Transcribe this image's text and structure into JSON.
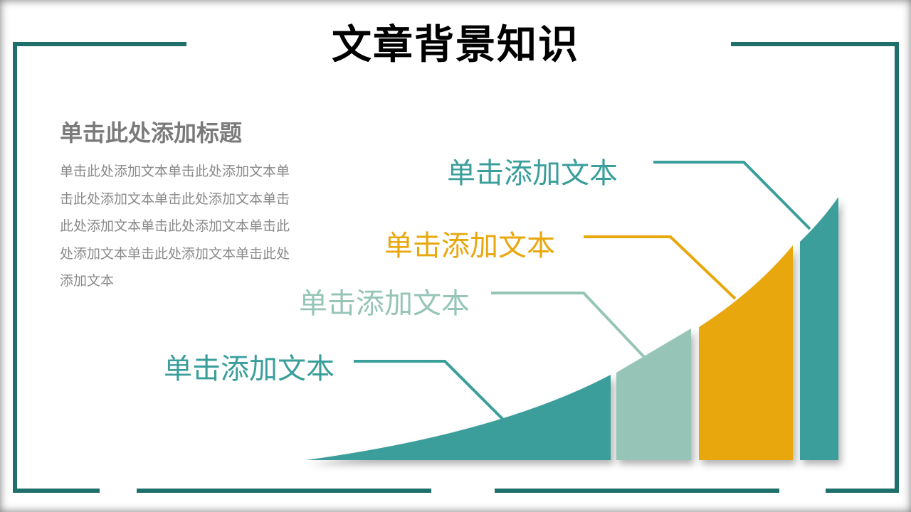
{
  "title": "文章背景知识",
  "subtitle": "单击此处添加标题",
  "body_text": "单击此处添加文本单击此处添加文本单击此处添加文本单击此处添加文本单击此处添加文本单击此处添加文本单击此处添加文本单击此处添加文本单击此处添加文本",
  "labels": [
    {
      "text": "单击添加文本",
      "color": "#3a9e9b"
    },
    {
      "text": "单击添加文本",
      "color": "#96c5b8"
    },
    {
      "text": "单击添加文本",
      "color": "#e8a70c"
    },
    {
      "text": "单击添加文本",
      "color": "#3a9e9b"
    }
  ],
  "colors": {
    "frame": "#1f6f6a",
    "teal": "#3a9e9b",
    "mint": "#96c5b8",
    "orange": "#e8a70c"
  }
}
